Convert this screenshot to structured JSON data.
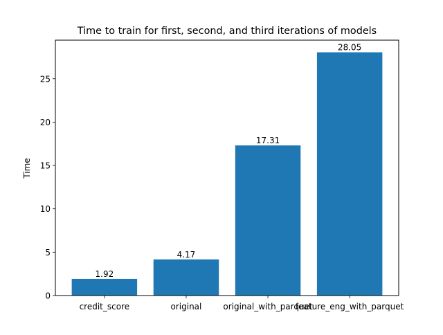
{
  "chart_data": {
    "type": "bar",
    "title": "Time to train for first, second, and third iterations of models",
    "xlabel": "",
    "ylabel": "Time",
    "categories": [
      "credit_score",
      "original",
      "original_with_parquet",
      "feature_eng_with_parquet"
    ],
    "values": [
      1.92,
      4.17,
      17.31,
      28.05
    ],
    "data_labels": [
      "1.92",
      "4.17",
      "17.31",
      "28.05"
    ],
    "ylim": [
      0,
      29.45
    ],
    "yticks": [
      0,
      5,
      10,
      15,
      20,
      25
    ],
    "grid": false,
    "legend": "none",
    "bar_color": "#1f77b4"
  }
}
